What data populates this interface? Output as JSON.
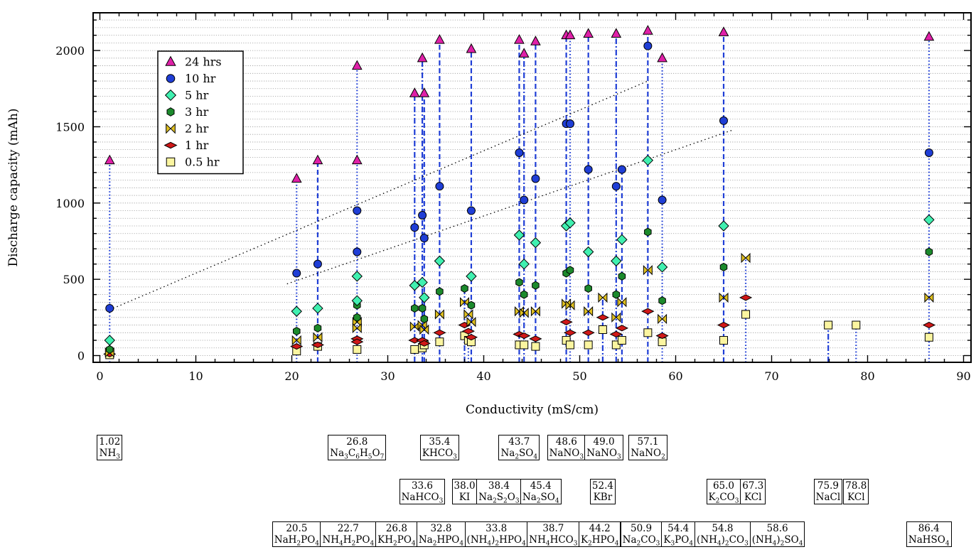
{
  "chart_data": {
    "type": "scatter",
    "xlabel": "Conductivity (mS/cm)",
    "ylabel": "Discharge capacity (mAh)",
    "xlim": [
      -1,
      91
    ],
    "ylim": [
      -50,
      2230
    ],
    "xticks": [
      0,
      10,
      20,
      30,
      40,
      50,
      60,
      70,
      80,
      90
    ],
    "yticks": [
      0,
      500,
      1000,
      1500,
      2000
    ],
    "grid": "horizontal-dotted",
    "legend_position": "top-left",
    "series": [
      {
        "name": "24 hrs",
        "marker": "triangle",
        "color": "#e020a8",
        "points": [
          [
            1.02,
            1280
          ],
          [
            20.5,
            1160
          ],
          [
            22.7,
            1280
          ],
          [
            26.8,
            1900
          ],
          [
            26.8,
            1280
          ],
          [
            32.8,
            1720
          ],
          [
            33.6,
            1950
          ],
          [
            33.8,
            1720
          ],
          [
            35.4,
            2070
          ],
          [
            38.7,
            2010
          ],
          [
            43.7,
            2070
          ],
          [
            44.2,
            1980
          ],
          [
            45.4,
            2060
          ],
          [
            48.6,
            2100
          ],
          [
            49.0,
            2100
          ],
          [
            50.9,
            2110
          ],
          [
            53.8,
            2110
          ],
          [
            57.1,
            2130
          ],
          [
            58.6,
            1950
          ],
          [
            65.0,
            2120
          ],
          [
            86.4,
            2090
          ]
        ]
      },
      {
        "name": "10 hr",
        "marker": "circle",
        "color": "#1f3ed6",
        "points": [
          [
            1.02,
            310
          ],
          [
            20.5,
            540
          ],
          [
            22.7,
            600
          ],
          [
            26.8,
            950
          ],
          [
            26.8,
            680
          ],
          [
            32.8,
            840
          ],
          [
            33.6,
            920
          ],
          [
            33.8,
            770
          ],
          [
            35.4,
            1110
          ],
          [
            38.7,
            950
          ],
          [
            43.7,
            1330
          ],
          [
            44.2,
            1020
          ],
          [
            45.4,
            1160
          ],
          [
            48.6,
            1520
          ],
          [
            49.0,
            1520
          ],
          [
            50.9,
            1220
          ],
          [
            53.8,
            1110
          ],
          [
            54.4,
            1220
          ],
          [
            57.1,
            2030
          ],
          [
            58.6,
            1020
          ],
          [
            65.0,
            1540
          ],
          [
            86.4,
            1330
          ]
        ]
      },
      {
        "name": "5 hr",
        "marker": "diamond",
        "color": "#40f0b0",
        "points": [
          [
            1.02,
            100
          ],
          [
            20.5,
            290
          ],
          [
            22.7,
            310
          ],
          [
            26.8,
            520
          ],
          [
            26.8,
            360
          ],
          [
            32.8,
            460
          ],
          [
            33.6,
            480
          ],
          [
            33.8,
            380
          ],
          [
            35.4,
            620
          ],
          [
            38.7,
            520
          ],
          [
            43.7,
            790
          ],
          [
            44.2,
            600
          ],
          [
            45.4,
            740
          ],
          [
            48.6,
            850
          ],
          [
            49.0,
            870
          ],
          [
            50.9,
            680
          ],
          [
            53.8,
            620
          ],
          [
            54.4,
            760
          ],
          [
            57.1,
            1280
          ],
          [
            58.6,
            580
          ],
          [
            65.0,
            850
          ],
          [
            86.4,
            890
          ]
        ]
      },
      {
        "name": "3 hr",
        "marker": "hexagon",
        "color": "#1c8a2c",
        "points": [
          [
            1.02,
            40
          ],
          [
            20.5,
            160
          ],
          [
            22.7,
            180
          ],
          [
            26.8,
            330
          ],
          [
            26.8,
            250
          ],
          [
            32.8,
            310
          ],
          [
            33.6,
            310
          ],
          [
            33.8,
            240
          ],
          [
            35.4,
            420
          ],
          [
            38.0,
            440
          ],
          [
            38.7,
            330
          ],
          [
            43.7,
            480
          ],
          [
            44.2,
            400
          ],
          [
            45.4,
            460
          ],
          [
            48.6,
            540
          ],
          [
            49.0,
            560
          ],
          [
            50.9,
            440
          ],
          [
            53.8,
            400
          ],
          [
            54.4,
            520
          ],
          [
            57.1,
            810
          ],
          [
            58.6,
            360
          ],
          [
            65.0,
            580
          ],
          [
            86.4,
            680
          ]
        ]
      },
      {
        "name": "2 hr",
        "marker": "bowtie",
        "color": "#e0c020",
        "points": [
          [
            1.02,
            20
          ],
          [
            20.5,
            100
          ],
          [
            22.7,
            120
          ],
          [
            26.8,
            220
          ],
          [
            26.8,
            180
          ],
          [
            32.8,
            190
          ],
          [
            33.6,
            200
          ],
          [
            33.8,
            170
          ],
          [
            35.4,
            270
          ],
          [
            38.0,
            350
          ],
          [
            38.4,
            270
          ],
          [
            38.7,
            220
          ],
          [
            43.7,
            290
          ],
          [
            44.2,
            280
          ],
          [
            45.4,
            290
          ],
          [
            48.6,
            340
          ],
          [
            49.0,
            330
          ],
          [
            50.9,
            290
          ],
          [
            52.4,
            380
          ],
          [
            53.8,
            250
          ],
          [
            54.4,
            350
          ],
          [
            57.1,
            560
          ],
          [
            58.6,
            240
          ],
          [
            65.0,
            380
          ],
          [
            67.3,
            640
          ],
          [
            86.4,
            380
          ]
        ]
      },
      {
        "name": "1 hr",
        "marker": "flatdiamond",
        "color": "#d01818",
        "points": [
          [
            1.02,
            10
          ],
          [
            20.5,
            60
          ],
          [
            22.7,
            70
          ],
          [
            26.8,
            110
          ],
          [
            26.8,
            90
          ],
          [
            32.8,
            100
          ],
          [
            33.6,
            100
          ],
          [
            33.8,
            80
          ],
          [
            35.4,
            150
          ],
          [
            38.0,
            200
          ],
          [
            38.4,
            160
          ],
          [
            38.7,
            120
          ],
          [
            43.7,
            140
          ],
          [
            44.2,
            130
          ],
          [
            45.4,
            110
          ],
          [
            48.6,
            220
          ],
          [
            49.0,
            150
          ],
          [
            50.9,
            150
          ],
          [
            52.4,
            250
          ],
          [
            53.8,
            140
          ],
          [
            54.4,
            180
          ],
          [
            57.1,
            290
          ],
          [
            58.6,
            130
          ],
          [
            65.0,
            200
          ],
          [
            67.3,
            380
          ],
          [
            86.4,
            200
          ]
        ]
      },
      {
        "name": "0.5 hr",
        "marker": "square",
        "color": "#fbf5a0",
        "points": [
          [
            1.02,
            5
          ],
          [
            20.5,
            30
          ],
          [
            22.7,
            60
          ],
          [
            26.8,
            40
          ],
          [
            32.8,
            40
          ],
          [
            33.6,
            50
          ],
          [
            33.8,
            70
          ],
          [
            35.4,
            90
          ],
          [
            38.0,
            130
          ],
          [
            38.4,
            100
          ],
          [
            38.7,
            90
          ],
          [
            43.7,
            70
          ],
          [
            44.2,
            70
          ],
          [
            45.4,
            60
          ],
          [
            48.6,
            100
          ],
          [
            49.0,
            70
          ],
          [
            50.9,
            70
          ],
          [
            52.4,
            170
          ],
          [
            53.8,
            70
          ],
          [
            54.4,
            100
          ],
          [
            57.1,
            150
          ],
          [
            58.6,
            90
          ],
          [
            65.0,
            100
          ],
          [
            67.3,
            270
          ],
          [
            75.9,
            200
          ],
          [
            78.8,
            200
          ],
          [
            86.4,
            120
          ]
        ]
      }
    ],
    "drop_lines": [
      {
        "x": 1.02,
        "top": 1280,
        "style": "dotted"
      },
      {
        "x": 20.5,
        "top": 1160,
        "style": "dotted"
      },
      {
        "x": 22.7,
        "top": 1280,
        "style": "dashed"
      },
      {
        "x": 26.8,
        "top": 1900,
        "style": "dotted"
      },
      {
        "x": 32.8,
        "top": 1720,
        "style": "dashdot"
      },
      {
        "x": 33.6,
        "top": 1950,
        "style": "dashdot"
      },
      {
        "x": 33.8,
        "top": 1720,
        "style": "dashed"
      },
      {
        "x": 35.4,
        "top": 2070,
        "style": "dashed"
      },
      {
        "x": 38.0,
        "top": 440,
        "style": "dashdot"
      },
      {
        "x": 38.4,
        "top": 270,
        "style": "dotted"
      },
      {
        "x": 38.7,
        "top": 2010,
        "style": "dashed"
      },
      {
        "x": 43.7,
        "top": 2070,
        "style": "dashed"
      },
      {
        "x": 44.2,
        "top": 1980,
        "style": "dashdot"
      },
      {
        "x": 45.4,
        "top": 2060,
        "style": "dashed"
      },
      {
        "x": 48.6,
        "top": 2100,
        "style": "dashed"
      },
      {
        "x": 49.0,
        "top": 2100,
        "style": "dotted"
      },
      {
        "x": 50.9,
        "top": 2110,
        "style": "dashed"
      },
      {
        "x": 52.4,
        "top": 380,
        "style": "dashdot"
      },
      {
        "x": 53.8,
        "top": 2110,
        "style": "dashdot"
      },
      {
        "x": 54.4,
        "top": 1220,
        "style": "dashed"
      },
      {
        "x": 57.1,
        "top": 2130,
        "style": "dashed"
      },
      {
        "x": 58.6,
        "top": 1950,
        "style": "dotted"
      },
      {
        "x": 65.0,
        "top": 2120,
        "style": "dashed"
      },
      {
        "x": 67.3,
        "top": 640,
        "style": "dotted"
      },
      {
        "x": 75.9,
        "top": 200,
        "style": "dashdot"
      },
      {
        "x": 78.8,
        "top": 200,
        "style": "dotted"
      },
      {
        "x": 86.4,
        "top": 2090,
        "style": "dotted"
      }
    ],
    "trend_lines": [
      {
        "from": [
          1.02,
          300
        ],
        "to": [
          57.1,
          1800
        ]
      },
      {
        "from": [
          19.5,
          470
        ],
        "to": [
          66.0,
          1480
        ]
      }
    ],
    "electrolyte_labels": [
      {
        "row": 1,
        "value": "1.02",
        "formula": "NH<sub>3</sub>"
      },
      {
        "row": 1,
        "value": "26.8",
        "formula": "Na<sub>3</sub>C<sub>6</sub>H<sub>5</sub>O<sub>7</sub>"
      },
      {
        "row": 1,
        "value": "35.4",
        "formula": "KHCO<sub>3</sub>"
      },
      {
        "row": 1,
        "value": "43.7",
        "formula": "Na<sub>2</sub>SO<sub>4</sub>"
      },
      {
        "row": 1,
        "value": "48.6",
        "formula": "NaNO<sub>3</sub>"
      },
      {
        "row": 1,
        "value": "49.0",
        "formula": "NaNO<sub>3</sub>"
      },
      {
        "row": 1,
        "value": "57.1",
        "formula": "NaNO<sub>2</sub>"
      },
      {
        "row": 2,
        "value": "33.6",
        "formula": "NaHCO<sub>3</sub>"
      },
      {
        "row": 2,
        "value": "38.0",
        "formula": "KI"
      },
      {
        "row": 2,
        "value": "38.4",
        "formula": "Na<sub>2</sub>S<sub>2</sub>O<sub>3</sub>"
      },
      {
        "row": 2,
        "value": "45.4",
        "formula": "Na<sub>2</sub>SO<sub>4</sub>"
      },
      {
        "row": 2,
        "value": "52.4",
        "formula": "KBr"
      },
      {
        "row": 2,
        "value": "65.0",
        "formula": "K<sub>2</sub>CO<sub>3</sub>"
      },
      {
        "row": 2,
        "value": "67.3",
        "formula": "KCl"
      },
      {
        "row": 2,
        "value": "75.9",
        "formula": "NaCl"
      },
      {
        "row": 2,
        "value": "78.8",
        "formula": "KCl"
      },
      {
        "row": 3,
        "value": "20.5",
        "formula": "NaH<sub>2</sub>PO<sub>4</sub>"
      },
      {
        "row": 3,
        "value": "22.7",
        "formula": "NH<sub>4</sub>H<sub>2</sub>PO<sub>4</sub>"
      },
      {
        "row": 3,
        "value": "26.8",
        "formula": "KH<sub>2</sub>PO<sub>4</sub>"
      },
      {
        "row": 3,
        "value": "32.8",
        "formula": "Na<sub>2</sub>HPO<sub>4</sub>"
      },
      {
        "row": 3,
        "value": "33.8",
        "formula": "(NH<sub>4</sub>)<sub>2</sub>HPO<sub>4</sub>"
      },
      {
        "row": 3,
        "value": "38.7",
        "formula": "NH<sub>4</sub>HCO<sub>3</sub>"
      },
      {
        "row": 3,
        "value": "44.2",
        "formula": "K<sub>2</sub>HPO<sub>4</sub>"
      },
      {
        "row": 3,
        "value": "50.9",
        "formula": "Na<sub>2</sub>CO<sub>3</sub>"
      },
      {
        "row": 3,
        "value": "54.4",
        "formula": "K<sub>3</sub>PO<sub>4</sub>"
      },
      {
        "row": 3,
        "value": "54.8",
        "formula": "(NH<sub>4</sub>)<sub>2</sub>CO<sub>3</sub>"
      },
      {
        "row": 3,
        "value": "58.6",
        "formula": "(NH<sub>4</sub>)<sub>2</sub>SO<sub>4</sub>"
      },
      {
        "row": 3,
        "value": "86.4",
        "formula": "NaHSO<sub>4</sub>"
      }
    ]
  }
}
